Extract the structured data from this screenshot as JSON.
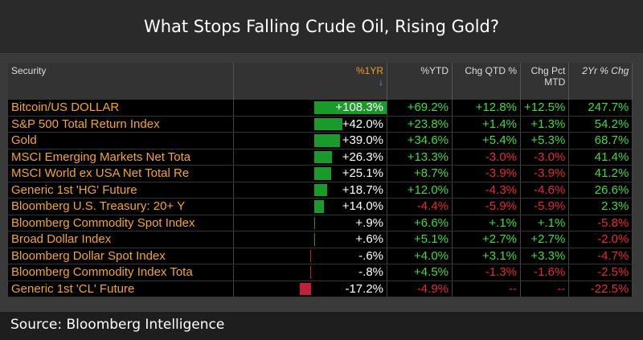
{
  "title": "What Stops Falling Crude Oil, Rising Gold?",
  "headers": {
    "security": "Security",
    "one_yr": "%1YR",
    "ytd": "%YTD",
    "qtd": "Chg QTD %",
    "mtd": "Chg Pct MTD",
    "two_yr": "2Yr % Chg",
    "sort_icon": "↓"
  },
  "colors": {
    "positive": "#3fdc3f",
    "negative": "#e8283a",
    "security": "#f5a623",
    "bar_positive": "#1a9a2a",
    "bar_negative": "#c0203a"
  },
  "rows": [
    {
      "name": "Bitcoin/US DOLLAR",
      "one_yr_value": 108.3,
      "one_yr": "+108.3%",
      "ytd": "+69.2%",
      "qtd": "+12.8%",
      "mtd": "+12.5%",
      "two_yr": "247.7%"
    },
    {
      "name": "S&P 500 Total Return Index",
      "one_yr_value": 42.0,
      "one_yr": "+42.0%",
      "ytd": "+23.8%",
      "qtd": "+1.4%",
      "mtd": "+1.3%",
      "two_yr": "54.2%"
    },
    {
      "name": "Gold",
      "one_yr_value": 39.0,
      "one_yr": "+39.0%",
      "ytd": "+34.6%",
      "qtd": "+5.4%",
      "mtd": "+5.3%",
      "two_yr": "68.7%"
    },
    {
      "name": "MSCI Emerging Markets Net Tota",
      "one_yr_value": 26.3,
      "one_yr": "+26.3%",
      "ytd": "+13.3%",
      "qtd": "-3.0%",
      "mtd": "-3.0%",
      "two_yr": "41.4%"
    },
    {
      "name": "MSCI World ex USA Net Total Re",
      "one_yr_value": 25.1,
      "one_yr": "+25.1%",
      "ytd": "+8.7%",
      "qtd": "-3.9%",
      "mtd": "-3.9%",
      "two_yr": "41.2%"
    },
    {
      "name": "Generic 1st 'HG' Future",
      "one_yr_value": 18.7,
      "one_yr": "+18.7%",
      "ytd": "+12.0%",
      "qtd": "-4.3%",
      "mtd": "-4.6%",
      "two_yr": "26.6%"
    },
    {
      "name": "Bloomberg U.S. Treasury: 20+ Y",
      "one_yr_value": 14.0,
      "one_yr": "+14.0%",
      "ytd": "-4.4%",
      "qtd": "-5.9%",
      "mtd": "-5.9%",
      "two_yr": "2.3%"
    },
    {
      "name": "Bloomberg Commodity Spot Index",
      "one_yr_value": 0.9,
      "one_yr": "+.9%",
      "ytd": "+6.6%",
      "qtd": "+.1%",
      "mtd": "+.1%",
      "two_yr": "-5.8%"
    },
    {
      "name": "Broad Dollar Index",
      "one_yr_value": 0.6,
      "one_yr": "+.6%",
      "ytd": "+5.1%",
      "qtd": "+2.7%",
      "mtd": "+2.7%",
      "two_yr": "-2.0%"
    },
    {
      "name": "Bloomberg Dollar Spot Index",
      "one_yr_value": -0.6,
      "one_yr": "-.6%",
      "ytd": "+4.0%",
      "qtd": "+3.1%",
      "mtd": "+3.3%",
      "two_yr": "-4.7%"
    },
    {
      "name": "Bloomberg Commodity Index Tota",
      "one_yr_value": -0.8,
      "one_yr": "-.8%",
      "ytd": "+4.5%",
      "qtd": "-1.3%",
      "mtd": "-1.6%",
      "two_yr": "-2.5%"
    },
    {
      "name": "Generic 1st 'CL' Future",
      "one_yr_value": -17.2,
      "one_yr": "-17.2%",
      "ytd": "-4.9%",
      "qtd": "--",
      "mtd": "--",
      "two_yr": "-22.5%"
    }
  ],
  "source": "Source: Bloomberg Intelligence"
}
